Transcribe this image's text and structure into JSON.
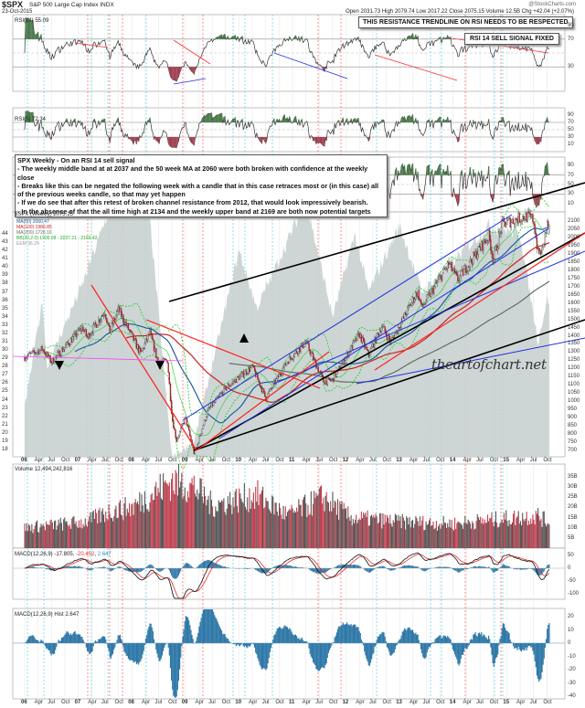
{
  "header": {
    "symbol": "$SPX",
    "name": "S&P 500 Large Cap Index INDX",
    "date": "23-Oct-2015",
    "source": "@StockCharts.com",
    "quote": "Open 2031.73  High 2079.74  Low 2017.22  Close 2075.15  Volume 12.5B  Chg +42.04 (+2.07%)"
  },
  "annotations": {
    "rsi_trendline": "THIS RESISTANCE TRENDLINE ON RSI NEEDS TO BE RESPECTED",
    "rsi_sell": "RSI 14 SELL SIGNAL FIXED",
    "note_title": "SPX Weekly - On an RSI 14 sell signal",
    "note_lines": [
      "- The weekly middle band at at 2037 and the 50 week MA at 2060 were both broken with confidence at the weekly close",
      "- Breaks like this can be negated the following week with a candle that in this case retraces most or (in this case) all of the previous weeks candle, so that may yet happen",
      "- If we do see that after this retest of broken channel resistance from 2012, that would look impressively bearish.",
      "- In the absence of that the all time high at 2134 and the weekly upper band at 2169 are both now potential targets"
    ],
    "watermark": "theartofchart.net"
  },
  "legends": {
    "rsi14": "RSI(14) 55.09",
    "rsi5": "RSI(5) 72.34",
    "price": "$SPX (Weekly) 2075.15",
    "ma50": "MA(50) 2060.47",
    "ma100": "MA(100) 1980.85",
    "ma200": "MA(200) 1726.16",
    "bb": "BB(20,2.0) 1905.08 - 2037.21 - 2169.42",
    "eem": "EEM 36.29",
    "volume": "Volume 12,494,242,816",
    "macd": "MACD(12,26,9) -17.805",
    "macd_signal": "-20.452",
    "macd_hist_val": "2.647",
    "macd_hist": "MACD(12,26,9) Hist 2.647"
  },
  "colors": {
    "ma50": "#2060a0",
    "ma100": "#d02020",
    "ma200": "#607060",
    "bb": "#22cc22",
    "eem": "#c8d0d0",
    "up": "#303030",
    "down": "#c03040",
    "macd_hist": "#2f78a8",
    "dash_red": "#ff4040",
    "dash_cyan": "#30d0e0"
  },
  "chart_data": {
    "type": "candlestick",
    "title": "$SPX S&P 500 Large Cap Index INDX",
    "interval": "weekly",
    "x_range": [
      "2006-01",
      "2015-10"
    ],
    "x_ticks": [
      "06",
      "Apr",
      "Jul",
      "Oct",
      "07",
      "Apr",
      "Jul",
      "Oct",
      "08",
      "Apr",
      "Jul",
      "Oct",
      "09",
      "Apr",
      "Jul",
      "Oct",
      "10",
      "Apr",
      "Jul",
      "Oct",
      "11",
      "Apr",
      "Jul",
      "Oct",
      "12",
      "Apr",
      "Jul",
      "Oct",
      "13",
      "Apr",
      "Jul",
      "Oct",
      "14",
      "Apr",
      "Jul",
      "Oct",
      "15",
      "Apr",
      "Jul",
      "Oct"
    ],
    "price_axis": {
      "ylim": [
        700,
        2100
      ],
      "ticks": [
        700,
        750,
        800,
        850,
        900,
        950,
        1000,
        1050,
        1100,
        1150,
        1200,
        1250,
        1300,
        1350,
        1400,
        1450,
        1500,
        1550,
        1600,
        1650,
        1700,
        1750,
        1800,
        1850,
        1900,
        1950,
        2000,
        2050,
        2100
      ]
    },
    "eem_axis": {
      "ylim": [
        18,
        44
      ],
      "ticks": [
        18,
        19,
        20,
        21,
        22,
        23,
        24,
        25,
        26,
        27,
        28,
        29,
        30,
        31,
        32,
        33,
        34,
        35,
        36,
        37,
        38,
        39,
        40,
        41,
        42,
        43,
        44
      ]
    },
    "spx_close_approx": [
      [
        "2006-01",
        1270
      ],
      [
        "2006-05",
        1320
      ],
      [
        "2006-07",
        1240
      ],
      [
        "2007-02",
        1450
      ],
      [
        "2007-03",
        1390
      ],
      [
        "2007-07",
        1550
      ],
      [
        "2007-08",
        1420
      ],
      [
        "2007-10",
        1560
      ],
      [
        "2008-03",
        1290
      ],
      [
        "2008-05",
        1420
      ],
      [
        "2008-07",
        1230
      ],
      [
        "2008-09",
        1250
      ],
      [
        "2008-10",
        900
      ],
      [
        "2008-11",
        760
      ],
      [
        "2009-01",
        900
      ],
      [
        "2009-03",
        680
      ],
      [
        "2009-06",
        940
      ],
      [
        "2009-10",
        1080
      ],
      [
        "2010-04",
        1210
      ],
      [
        "2010-07",
        1020
      ],
      [
        "2010-12",
        1250
      ],
      [
        "2011-04",
        1360
      ],
      [
        "2011-08",
        1120
      ],
      [
        "2011-10",
        1130
      ],
      [
        "2012-04",
        1410
      ],
      [
        "2012-06",
        1280
      ],
      [
        "2012-09",
        1460
      ],
      [
        "2012-11",
        1360
      ],
      [
        "2013-05",
        1670
      ],
      [
        "2013-06",
        1570
      ],
      [
        "2013-12",
        1840
      ],
      [
        "2014-02",
        1740
      ],
      [
        "2014-09",
        2010
      ],
      [
        "2014-10",
        1860
      ],
      [
        "2014-12",
        2080
      ],
      [
        "2015-05",
        2130
      ],
      [
        "2015-07",
        2110
      ],
      [
        "2015-08",
        1900
      ],
      [
        "2015-09",
        1920
      ],
      [
        "2015-10",
        2075
      ]
    ],
    "eem_close_approx": [
      [
        "2006-01",
        23
      ],
      [
        "2006-05",
        36
      ],
      [
        "2006-06",
        28
      ],
      [
        "2007-02",
        38
      ],
      [
        "2007-10",
        50
      ],
      [
        "2008-05",
        46
      ],
      [
        "2008-10",
        17
      ],
      [
        "2009-03",
        19
      ],
      [
        "2010-01",
        42
      ],
      [
        "2010-05",
        35
      ],
      [
        "2011-04",
        48
      ],
      [
        "2011-10",
        34
      ],
      [
        "2012-03",
        44
      ],
      [
        "2012-06",
        37
      ],
      [
        "2013-01",
        45
      ],
      [
        "2013-06",
        37
      ],
      [
        "2014-09",
        45
      ],
      [
        "2015-04",
        44
      ],
      [
        "2015-08",
        31
      ],
      [
        "2015-10",
        36
      ]
    ],
    "volume_billions_approx": [
      [
        "2006-01",
        10
      ],
      [
        "2007-03",
        13
      ],
      [
        "2007-08",
        18
      ],
      [
        "2008-01",
        20
      ],
      [
        "2008-10",
        33
      ],
      [
        "2009-03",
        30
      ],
      [
        "2009-07",
        21
      ],
      [
        "2010-05",
        26
      ],
      [
        "2010-12",
        16
      ],
      [
        "2011-08",
        25
      ],
      [
        "2012-02",
        15
      ],
      [
        "2013-01",
        13
      ],
      [
        "2014-01",
        12
      ],
      [
        "2015-08",
        16
      ],
      [
        "2015-10",
        13
      ]
    ],
    "volume_axis": {
      "ticks": [
        "5B",
        "10B",
        "15B",
        "20B",
        "25B",
        "30B",
        "35B"
      ]
    },
    "rsi_ticks": [
      90,
      70,
      50,
      30,
      10
    ],
    "macd_ticks": [
      50,
      0,
      -50,
      -100
    ],
    "hist_ticks": [
      20,
      10,
      0,
      -10,
      -20,
      -30,
      -40
    ]
  }
}
